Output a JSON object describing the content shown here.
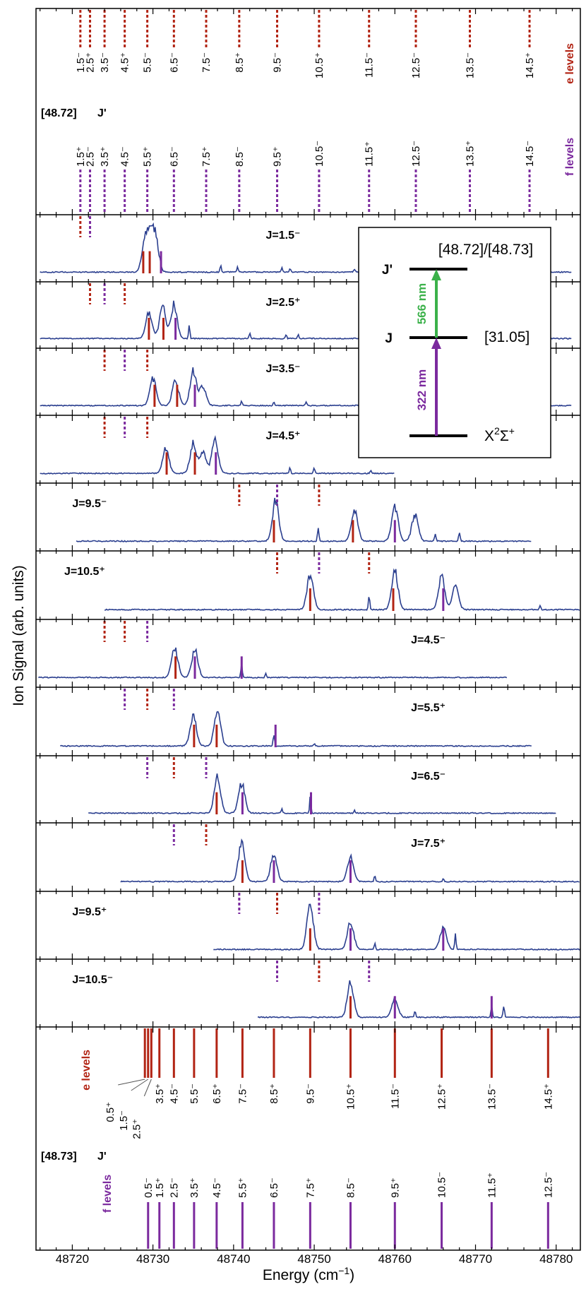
{
  "chart_data": {
    "type": "line",
    "x_label": "Energy (cm",
    "x_label_sup": "−1",
    "x_label_end": ")",
    "y_label": "Ion Signal (arb. units)",
    "xlim": [
      48715.5,
      48783
    ],
    "x_ticks": [
      48720,
      48730,
      48740,
      48750,
      48760,
      48770,
      48780
    ],
    "colors": {
      "e": "#b22414",
      "f": "#7b2a9e",
      "trace": "#2b3f8f",
      "green": "#3bb14a"
    },
    "top_panel": {
      "state": "[48.72]",
      "jprime": "J'",
      "e_title": "e levels",
      "f_title": "f levels",
      "e_levels": [
        {
          "label": "1.5⁻",
          "x": 48721
        },
        {
          "label": "2.5⁺",
          "x": 48722.2
        },
        {
          "label": "3.5⁻",
          "x": 48724
        },
        {
          "label": "4.5⁺",
          "x": 48726.5
        },
        {
          "label": "5.5⁻",
          "x": 48729.3
        },
        {
          "label": "6.5⁻",
          "x": 48732.6
        },
        {
          "label": "7.5⁻",
          "x": 48736.6
        },
        {
          "label": "8.5⁺",
          "x": 48740.7
        },
        {
          "label": "9.5⁻",
          "x": 48745.4
        },
        {
          "label": "10.5⁺",
          "x": 48750.6
        },
        {
          "label": "11.5⁻",
          "x": 48756.8
        },
        {
          "label": "12.5⁻",
          "x": 48762.6
        },
        {
          "label": "13.5⁻",
          "x": 48769.3
        },
        {
          "label": "14.5⁺",
          "x": 48776.7
        }
      ],
      "f_levels": [
        {
          "label": "1.5⁺",
          "x": 48721
        },
        {
          "label": "2.5⁻",
          "x": 48722.2
        },
        {
          "label": "3.5⁺",
          "x": 48724
        },
        {
          "label": "4.5⁻",
          "x": 48726.5
        },
        {
          "label": "5.5⁺",
          "x": 48729.3
        },
        {
          "label": "6.5⁻",
          "x": 48732.6
        },
        {
          "label": "7.5⁺",
          "x": 48736.6
        },
        {
          "label": "8.5⁻",
          "x": 48740.7
        },
        {
          "label": "9.5⁺",
          "x": 48745.4
        },
        {
          "label": "10.5⁻",
          "x": 48750.6
        },
        {
          "label": "11.5⁺",
          "x": 48756.8
        },
        {
          "label": "12.5⁻",
          "x": 48762.6
        },
        {
          "label": "13.5⁺",
          "x": 48769.3
        },
        {
          "label": "14.5⁻",
          "x": 48776.7
        }
      ]
    },
    "bottom_panel": {
      "state": "[48.73]",
      "jprime": "J'",
      "e_title": "e levels",
      "f_title": "f levels",
      "e_levels": [
        {
          "label": "0.5⁺",
          "x": 48729
        },
        {
          "label": "1.5⁻",
          "x": 48729.4
        },
        {
          "label": "2.5⁺",
          "x": 48729.8
        },
        {
          "label": "3.5⁺",
          "x": 48730.8
        },
        {
          "label": "4.5⁻",
          "x": 48732.6
        },
        {
          "label": "5.5⁻",
          "x": 48735.1
        },
        {
          "label": "6.5⁺",
          "x": 48737.9
        },
        {
          "label": "7.5⁻",
          "x": 48741.1
        },
        {
          "label": "8.5⁺",
          "x": 48745
        },
        {
          "label": "9.5⁻",
          "x": 48749.5
        },
        {
          "label": "10.5⁺",
          "x": 48754.5
        },
        {
          "label": "11.5⁻",
          "x": 48760
        },
        {
          "label": "12.5⁺",
          "x": 48765.8
        },
        {
          "label": "13.5⁻",
          "x": 48772
        },
        {
          "label": "14.5⁺",
          "x": 48779
        }
      ],
      "f_levels": [
        {
          "label": "0.5⁻",
          "x": 48729.4
        },
        {
          "label": "1.5⁺",
          "x": 48730.8
        },
        {
          "label": "2.5⁻",
          "x": 48732.6
        },
        {
          "label": "3.5⁺",
          "x": 48735.1
        },
        {
          "label": "4.5⁻",
          "x": 48737.9
        },
        {
          "label": "5.5⁺",
          "x": 48741.1
        },
        {
          "label": "6.5⁻",
          "x": 48745
        },
        {
          "label": "7.5⁺",
          "x": 48749.5
        },
        {
          "label": "8.5⁻",
          "x": 48754.5
        },
        {
          "label": "9.5⁺",
          "x": 48760
        },
        {
          "label": "10.5⁻",
          "x": 48765.8
        },
        {
          "label": "11.5⁺",
          "x": 48772
        },
        {
          "label": "12.5⁻",
          "x": 48779
        }
      ]
    },
    "spectra": [
      {
        "label": "J=1.5⁻",
        "label_x": 48744,
        "start": 48716,
        "end": 48782,
        "peaks": [
          [
            48729,
            0.6
          ],
          [
            48730.3,
            0.75
          ],
          [
            48729.6,
            0.55
          ],
          [
            48738.4,
            0.12
          ],
          [
            48740.5,
            0.1
          ],
          [
            48746,
            0.08
          ],
          [
            48747,
            0.07
          ],
          [
            48755,
            0.06
          ]
        ],
        "lines": [
          {
            "c": "e",
            "x": 48728.8
          },
          {
            "c": "e",
            "x": 48729.6
          },
          {
            "c": "f",
            "x": 48731
          }
        ],
        "dots": [
          {
            "c": "e",
            "x": 48721
          },
          {
            "c": "f",
            "x": 48722.2
          }
        ]
      },
      {
        "label": "J=2.5⁺",
        "label_x": 48744,
        "start": 48716,
        "end": 48782,
        "peaks": [
          [
            48729.5,
            0.55
          ],
          [
            48731.2,
            0.65
          ],
          [
            48732.6,
            0.7
          ],
          [
            48734.5,
            0.25
          ],
          [
            48742,
            0.1
          ],
          [
            48746.5,
            0.08
          ],
          [
            48748,
            0.08
          ]
        ],
        "lines": [
          {
            "c": "e",
            "x": 48729.5
          },
          {
            "c": "e",
            "x": 48731.3
          },
          {
            "c": "f",
            "x": 48732.8
          }
        ],
        "dots": [
          {
            "c": "e",
            "x": 48722.2
          },
          {
            "c": "f",
            "x": 48724
          },
          {
            "c": "e",
            "x": 48726.5
          }
        ]
      },
      {
        "label": "J=3.5⁻",
        "label_x": 48744,
        "start": 48716,
        "end": 48782,
        "peaks": [
          [
            48730,
            0.55
          ],
          [
            48732.8,
            0.5
          ],
          [
            48735,
            0.7
          ],
          [
            48736.2,
            0.4
          ],
          [
            48741,
            0.1
          ],
          [
            48745,
            0.08
          ],
          [
            48749,
            0.07
          ]
        ],
        "lines": [
          {
            "c": "e",
            "x": 48730.2
          },
          {
            "c": "e",
            "x": 48733
          },
          {
            "c": "f",
            "x": 48735.2
          }
        ],
        "dots": [
          {
            "c": "e",
            "x": 48724
          },
          {
            "c": "f",
            "x": 48726.5
          },
          {
            "c": "e",
            "x": 48729.3
          }
        ]
      },
      {
        "label": "J=4.5⁺",
        "label_x": 48744,
        "start": 48716,
        "end": 48760,
        "peaks": [
          [
            48731.6,
            0.5
          ],
          [
            48735,
            0.6
          ],
          [
            48737.7,
            0.7
          ],
          [
            48736.2,
            0.45
          ],
          [
            48747,
            0.12
          ],
          [
            48750,
            0.1
          ],
          [
            48757,
            0.06
          ]
        ],
        "lines": [
          {
            "c": "e",
            "x": 48731.7
          },
          {
            "c": "e",
            "x": 48735.2
          },
          {
            "c": "f",
            "x": 48737.8
          }
        ],
        "dots": [
          {
            "c": "e",
            "x": 48724
          },
          {
            "c": "f",
            "x": 48726.5
          },
          {
            "c": "e",
            "x": 48729.3
          }
        ]
      },
      {
        "label": "J=9.5⁻",
        "label_x": 48720,
        "start": 48720.5,
        "end": 48777,
        "peaks": [
          [
            48745.2,
            0.8
          ],
          [
            48750.5,
            0.3
          ],
          [
            48755,
            0.65
          ],
          [
            48760,
            0.7
          ],
          [
            48762.5,
            0.55
          ],
          [
            48765,
            0.15
          ],
          [
            48768,
            0.2
          ]
        ],
        "lines": [
          {
            "c": "e",
            "x": 48745
          },
          {
            "c": "e",
            "x": 48754.8
          },
          {
            "c": "f",
            "x": 48760
          }
        ],
        "dots": [
          {
            "c": "e",
            "x": 48740.7
          },
          {
            "c": "f",
            "x": 48745.4
          },
          {
            "c": "e",
            "x": 48750.6
          }
        ]
      },
      {
        "label": "J=10.5⁺",
        "label_x": 48719,
        "start": 48724,
        "end": 48783,
        "peaks": [
          [
            48749.5,
            0.7
          ],
          [
            48756.8,
            0.3
          ],
          [
            48760,
            0.75
          ],
          [
            48765.8,
            0.65
          ],
          [
            48767.5,
            0.45
          ],
          [
            48778,
            0.08
          ]
        ],
        "lines": [
          {
            "c": "e",
            "x": 48749.5
          },
          {
            "c": "e",
            "x": 48759.8
          },
          {
            "c": "f",
            "x": 48766
          }
        ],
        "dots": [
          {
            "c": "e",
            "x": 48745.4
          },
          {
            "c": "f",
            "x": 48750.6
          },
          {
            "c": "e",
            "x": 48756.8
          }
        ]
      },
      {
        "label": "J=4.5⁻",
        "label_x": 48762,
        "start": 48715.8,
        "end": 48774,
        "peaks": [
          [
            48732.7,
            0.6
          ],
          [
            48735.2,
            0.55
          ],
          [
            48741,
            0.3
          ],
          [
            48744,
            0.08
          ]
        ],
        "lines": [
          {
            "c": "e",
            "x": 48732.8
          },
          {
            "c": "f",
            "x": 48735.2
          },
          {
            "c": "f",
            "x": 48741
          }
        ],
        "dots": [
          {
            "c": "e",
            "x": 48724
          },
          {
            "c": "e",
            "x": 48726.5
          },
          {
            "c": "f",
            "x": 48729.3
          }
        ]
      },
      {
        "label": "J=5.5⁺",
        "label_x": 48762,
        "start": 48718.5,
        "end": 48777,
        "peaks": [
          [
            48735,
            0.6
          ],
          [
            48738,
            0.7
          ],
          [
            48745,
            0.25
          ],
          [
            48750,
            0.05
          ]
        ],
        "lines": [
          {
            "c": "e",
            "x": 48735.1
          },
          {
            "c": "e",
            "x": 48737.9
          },
          {
            "c": "f",
            "x": 48745.2
          }
        ],
        "dots": [
          {
            "c": "f",
            "x": 48726.5
          },
          {
            "c": "e",
            "x": 48729.3
          },
          {
            "c": "f",
            "x": 48732.6
          }
        ]
      },
      {
        "label": "J=6.5⁻",
        "label_x": 48762,
        "start": 48722,
        "end": 48780,
        "peaks": [
          [
            48738,
            0.75
          ],
          [
            48741,
            0.6
          ],
          [
            48749.5,
            0.3
          ],
          [
            48746,
            0.1
          ],
          [
            48755,
            0.06
          ]
        ],
        "lines": [
          {
            "c": "e",
            "x": 48737.9
          },
          {
            "c": "f",
            "x": 48741.1
          },
          {
            "c": "f",
            "x": 48749.6
          }
        ],
        "dots": [
          {
            "c": "f",
            "x": 48729.3
          },
          {
            "c": "e",
            "x": 48732.6
          },
          {
            "c": "f",
            "x": 48736.6
          }
        ]
      },
      {
        "label": "J=7.5⁺",
        "label_x": 48762,
        "start": 48726,
        "end": 48783,
        "peaks": [
          [
            48741,
            0.8
          ],
          [
            48745,
            0.55
          ],
          [
            48754.5,
            0.5
          ],
          [
            48757.5,
            0.12
          ],
          [
            48766,
            0.05
          ]
        ],
        "lines": [
          {
            "c": "e",
            "x": 48741.1
          },
          {
            "c": "f",
            "x": 48745
          },
          {
            "c": "f",
            "x": 48754.5
          }
        ],
        "dots": [
          {
            "c": "f",
            "x": 48732.6
          },
          {
            "c": "e",
            "x": 48736.6
          }
        ]
      },
      {
        "label": "J=9.5⁺",
        "label_x": 48720,
        "start": 48737.5,
        "end": 48783,
        "peaks": [
          [
            48749.5,
            0.9
          ],
          [
            48754.5,
            0.55
          ],
          [
            48766,
            0.45
          ],
          [
            48767.5,
            0.3
          ],
          [
            48757.5,
            0.12
          ]
        ],
        "lines": [
          {
            "c": "e",
            "x": 48749.5
          },
          {
            "c": "f",
            "x": 48754.5
          },
          {
            "c": "f",
            "x": 48766
          }
        ],
        "dots": [
          {
            "c": "f",
            "x": 48740.7
          },
          {
            "c": "e",
            "x": 48745.4
          },
          {
            "c": "f",
            "x": 48750.6
          }
        ]
      },
      {
        "label": "J=10.5⁻",
        "label_x": 48720,
        "start": 48743,
        "end": 48783,
        "peaks": [
          [
            48754.5,
            0.7
          ],
          [
            48760,
            0.35
          ],
          [
            48762.5,
            0.12
          ],
          [
            48772,
            0.2
          ],
          [
            48773.5,
            0.25
          ]
        ],
        "lines": [
          {
            "c": "e",
            "x": 48754.5
          },
          {
            "c": "f",
            "x": 48760
          },
          {
            "c": "f",
            "x": 48772
          }
        ],
        "dots": [
          {
            "c": "f",
            "x": 48745.4
          },
          {
            "c": "e",
            "x": 48750.6
          },
          {
            "c": "f",
            "x": 48756.8
          }
        ]
      }
    ],
    "inset": {
      "top_label": "[48.72]/[48.73]",
      "mid_label": "[31.05]",
      "ground_label": "X",
      "ground_sup": "2",
      "ground_sym": "Σ",
      "ground_sup2": "+",
      "jprime": "J'",
      "j": "J",
      "green_label": "566 nm",
      "purple_label": "322 nm"
    }
  }
}
